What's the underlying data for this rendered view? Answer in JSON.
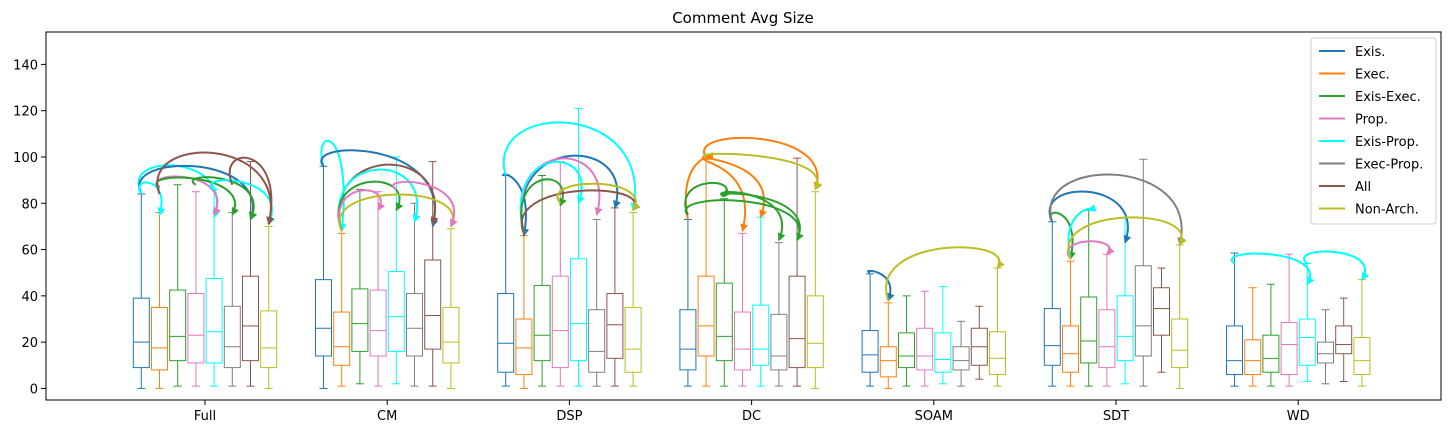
{
  "chart_data": {
    "type": "box",
    "title": "Comment Avg Size",
    "xlabel": "",
    "ylabel": "",
    "ylim": [
      -5,
      154
    ],
    "yticks": [
      0,
      20,
      40,
      60,
      80,
      100,
      120,
      140
    ],
    "legend_position": "top-right",
    "categories": [
      "Full",
      "CM",
      "DSP",
      "DC",
      "SOAM",
      "SDT",
      "WD"
    ],
    "series": [
      {
        "name": "Exis.",
        "color": "#1f77b4",
        "boxes": [
          {
            "min": 0,
            "q1": 9,
            "median": 20,
            "q3": 39,
            "max": 84
          },
          {
            "min": 0,
            "q1": 14,
            "median": 26,
            "q3": 47,
            "max": 96
          },
          {
            "min": 1,
            "q1": 7,
            "median": 19.5,
            "q3": 41,
            "max": 92
          },
          {
            "min": 1,
            "q1": 8,
            "median": 17,
            "q3": 34,
            "max": 73
          },
          {
            "min": 1,
            "q1": 7,
            "median": 14.5,
            "q3": 25,
            "max": 49.5
          },
          {
            "min": 1,
            "q1": 10,
            "median": 18.5,
            "q3": 34.5,
            "max": 72
          },
          {
            "min": 1,
            "q1": 6,
            "median": 12,
            "q3": 27,
            "max": 58.5
          }
        ]
      },
      {
        "name": "Exec.",
        "color": "#ff7f0e",
        "boxes": [
          {
            "min": 0,
            "q1": 8,
            "median": 17.5,
            "q3": 35,
            "max": 76
          },
          {
            "min": 1,
            "q1": 10,
            "median": 18,
            "q3": 33,
            "max": 67
          },
          {
            "min": 0,
            "q1": 6,
            "median": 17.5,
            "q3": 30,
            "max": 66
          },
          {
            "min": 1,
            "q1": 14,
            "median": 27,
            "q3": 48.5,
            "max": 99
          },
          {
            "min": 0,
            "q1": 5,
            "median": 12,
            "q3": 18,
            "max": 37
          },
          {
            "min": 1,
            "q1": 7,
            "median": 15,
            "q3": 27,
            "max": 55
          },
          {
            "min": 1,
            "q1": 6,
            "median": 12,
            "q3": 21,
            "max": 43.5
          }
        ]
      },
      {
        "name": "Exis-Exec.",
        "color": "#2ca02c",
        "boxes": [
          {
            "min": 1,
            "q1": 12,
            "median": 22.5,
            "q3": 42.5,
            "max": 88
          },
          {
            "min": 2,
            "q1": 16,
            "median": 28,
            "q3": 43,
            "max": 86
          },
          {
            "min": 1,
            "q1": 12,
            "median": 23,
            "q3": 44.5,
            "max": 92
          },
          {
            "min": 1,
            "q1": 12,
            "median": 22.5,
            "q3": 45.5,
            "max": 82
          },
          {
            "min": 1,
            "q1": 9,
            "median": 14,
            "q3": 24,
            "max": 40
          },
          {
            "min": 1,
            "q1": 11,
            "median": 20.5,
            "q3": 39.5,
            "max": 77
          },
          {
            "min": 1,
            "q1": 7,
            "median": 13,
            "q3": 23,
            "max": 45
          }
        ]
      },
      {
        "name": "Prop.",
        "color": "#e377c2",
        "boxes": [
          {
            "min": 1,
            "q1": 11,
            "median": 23,
            "q3": 41,
            "max": 85
          },
          {
            "min": 1,
            "q1": 14,
            "median": 25,
            "q3": 42.5,
            "max": 85
          },
          {
            "min": 1,
            "q1": 9,
            "median": 25,
            "q3": 48.5,
            "max": 98
          },
          {
            "min": 1,
            "q1": 8,
            "median": 17,
            "q3": 33,
            "max": 67
          },
          {
            "min": 1,
            "q1": 8,
            "median": 14,
            "q3": 26,
            "max": 42
          },
          {
            "min": 1,
            "q1": 9,
            "median": 18,
            "q3": 34,
            "max": 58
          },
          {
            "min": 1,
            "q1": 6,
            "median": 19,
            "q3": 28.5,
            "max": 58
          }
        ]
      },
      {
        "name": "Exis-Prop.",
        "color": "#00ffff",
        "boxes": [
          {
            "min": 1,
            "q1": 11,
            "median": 24.5,
            "q3": 47.5,
            "max": 86
          },
          {
            "min": 2,
            "q1": 16,
            "median": 31,
            "q3": 50.5,
            "max": 100
          },
          {
            "min": 1,
            "q1": 12,
            "median": 28,
            "q3": 56,
            "max": 121
          },
          {
            "min": 1,
            "q1": 10,
            "median": 17,
            "q3": 36,
            "max": 74
          },
          {
            "min": 2,
            "q1": 7,
            "median": 12.5,
            "q3": 24,
            "max": 44
          },
          {
            "min": 2,
            "q1": 12,
            "median": 22.5,
            "q3": 40,
            "max": 74
          },
          {
            "min": 3,
            "q1": 10,
            "median": 22,
            "q3": 30,
            "max": 54
          }
        ]
      },
      {
        "name": "Exec-Prop.",
        "color": "#7f7f7f",
        "boxes": [
          {
            "min": 1,
            "q1": 9,
            "median": 18,
            "q3": 35.5,
            "max": 76
          },
          {
            "min": 1,
            "q1": 14,
            "median": 26,
            "q3": 41,
            "max": 80
          },
          {
            "min": 1,
            "q1": 7,
            "median": 16,
            "q3": 34,
            "max": 73
          },
          {
            "min": 1,
            "q1": 8,
            "median": 14,
            "q3": 32,
            "max": 63
          },
          {
            "min": 1,
            "q1": 8,
            "median": 12,
            "q3": 18,
            "max": 29
          },
          {
            "min": 1,
            "q1": 14,
            "median": 27,
            "q3": 53,
            "max": 99
          },
          {
            "min": 2,
            "q1": 11,
            "median": 15,
            "q3": 20,
            "max": 34
          }
        ]
      },
      {
        "name": "All",
        "color": "#8c564b",
        "boxes": [
          {
            "min": 1,
            "q1": 12,
            "median": 27,
            "q3": 48.5,
            "max": 98
          },
          {
            "min": 1,
            "q1": 17,
            "median": 31.5,
            "q3": 55.5,
            "max": 98
          },
          {
            "min": 1,
            "q1": 13,
            "median": 27.5,
            "q3": 41,
            "max": 78
          },
          {
            "min": 1,
            "q1": 9,
            "median": 21.5,
            "q3": 48.5,
            "max": 99.5
          },
          {
            "min": 4,
            "q1": 10,
            "median": 18,
            "q3": 26,
            "max": 35.5
          },
          {
            "min": 7,
            "q1": 23,
            "median": 34.5,
            "q3": 43.5,
            "max": 52
          },
          {
            "min": 3,
            "q1": 15,
            "median": 19,
            "q3": 27,
            "max": 39
          }
        ]
      },
      {
        "name": "Non-Arch.",
        "color": "#bcbd22",
        "boxes": [
          {
            "min": 0,
            "q1": 9,
            "median": 17.5,
            "q3": 33.5,
            "max": 70
          },
          {
            "min": 0,
            "q1": 11,
            "median": 20,
            "q3": 35,
            "max": 69
          },
          {
            "min": 1,
            "q1": 7,
            "median": 17,
            "q3": 35,
            "max": 76
          },
          {
            "min": 0,
            "q1": 9,
            "median": 19.5,
            "q3": 40,
            "max": 85
          },
          {
            "min": 1,
            "q1": 6,
            "median": 13,
            "q3": 24.5,
            "max": 52
          },
          {
            "min": 0,
            "q1": 9,
            "median": 16.5,
            "q3": 30,
            "max": 62
          },
          {
            "min": 1,
            "q1": 6,
            "median": 12,
            "q3": 22,
            "max": 47
          }
        ]
      }
    ],
    "arrows": [
      {
        "group": 0,
        "from": 0,
        "to": 4,
        "color": "#00ffff",
        "peak": 100,
        "start_y": 85,
        "end_y": 74
      },
      {
        "group": 0,
        "from": 0,
        "to": 6,
        "color": "#1f77b4",
        "peak": 100,
        "start_y": 84,
        "end_y": 73
      },
      {
        "group": 0,
        "from": 0,
        "to": 1,
        "color": "#00ffff",
        "peak": 90,
        "start_y": 84,
        "end_y": 75
      },
      {
        "group": 0,
        "from": 1,
        "to": 4,
        "color": "#e377c2",
        "peak": 93,
        "start_y": 86,
        "end_y": 75
      },
      {
        "group": 0,
        "from": 1,
        "to": 5,
        "color": "#2ca02c",
        "peak": 92,
        "start_y": 87,
        "end_y": 75
      },
      {
        "group": 0,
        "from": 3,
        "to": 6,
        "color": "#2ca02c",
        "peak": 92,
        "start_y": 88,
        "end_y": 73
      },
      {
        "group": 0,
        "from": 4,
        "to": 7,
        "color": "#00ffff",
        "peak": 91,
        "start_y": 86,
        "end_y": 71
      },
      {
        "group": 0,
        "from": 5,
        "to": 7,
        "color": "#8c564b",
        "peak": 104,
        "start_y": 88,
        "end_y": 71
      },
      {
        "group": 0,
        "from": 1,
        "to": 7,
        "color": "#8c564b",
        "peak": 108,
        "start_y": 84,
        "end_y": 71
      },
      {
        "group": 1,
        "from": 0,
        "to": 1,
        "color": "#00ffff",
        "peak": 112,
        "start_y": 96,
        "end_y": 68
      },
      {
        "group": 1,
        "from": 0,
        "to": 6,
        "color": "#1f77b4",
        "peak": 106,
        "start_y": 96,
        "end_y": 70
      },
      {
        "group": 1,
        "from": 1,
        "to": 6,
        "color": "#8c564b",
        "peak": 104,
        "start_y": 68,
        "end_y": 71
      },
      {
        "group": 1,
        "from": 1,
        "to": 5,
        "color": "#00ffff",
        "peak": 101,
        "start_y": 68,
        "end_y": 72
      },
      {
        "group": 1,
        "from": 1,
        "to": 4,
        "color": "#2ca02c",
        "peak": 93,
        "start_y": 68,
        "end_y": 77
      },
      {
        "group": 1,
        "from": 1,
        "to": 3,
        "color": "#e377c2",
        "peak": 88,
        "start_y": 68,
        "end_y": 77
      },
      {
        "group": 1,
        "from": 1,
        "to": 7,
        "color": "#bcbd22",
        "peak": 87,
        "start_y": 68,
        "end_y": 70
      },
      {
        "group": 1,
        "from": 4,
        "to": 7,
        "color": "#e377c2",
        "peak": 90,
        "start_y": 86,
        "end_y": 70
      },
      {
        "group": 2,
        "from": 0,
        "to": 1,
        "color": "#1f77b4",
        "peak": 92,
        "start_y": 92,
        "end_y": 66
      },
      {
        "group": 2,
        "from": 0,
        "to": 7,
        "color": "#00ffff",
        "peak": 123,
        "start_y": 92,
        "end_y": 77
      },
      {
        "group": 2,
        "from": 1,
        "to": 6,
        "color": "#1f77b4",
        "peak": 108,
        "start_y": 67,
        "end_y": 78
      },
      {
        "group": 2,
        "from": 1,
        "to": 5,
        "color": "#e377c2",
        "peak": 107,
        "start_y": 67,
        "end_y": 75
      },
      {
        "group": 2,
        "from": 1,
        "to": 4,
        "color": "#00ffff",
        "peak": 104,
        "start_y": 67,
        "end_y": 80
      },
      {
        "group": 2,
        "from": 1,
        "to": 3,
        "color": "#2ca02c",
        "peak": 94,
        "start_y": 67,
        "end_y": 79
      },
      {
        "group": 2,
        "from": 1,
        "to": 7,
        "color": "#8c564b",
        "peak": 88,
        "start_y": 67,
        "end_y": 77
      },
      {
        "group": 2,
        "from": 3,
        "to": 7,
        "color": "#bcbd22",
        "peak": 90,
        "start_y": 80,
        "end_y": 77
      },
      {
        "group": 3,
        "from": 0,
        "to": 1,
        "color": "#ff7f0e",
        "peak": 99,
        "start_y": 73,
        "end_y": 100
      },
      {
        "group": 3,
        "from": 1,
        "to": 4,
        "color": "#ff7f0e",
        "peak": 98,
        "start_y": 100,
        "end_y": 74
      },
      {
        "group": 3,
        "from": 1,
        "to": 7,
        "color": "#ff7f0e",
        "peak": 111,
        "start_y": 100,
        "end_y": 86
      },
      {
        "group": 3,
        "from": 1,
        "to": 3,
        "color": "#ff7f0e",
        "peak": 96,
        "start_y": 100,
        "end_y": 68
      },
      {
        "group": 3,
        "from": 0,
        "to": 2,
        "color": "#2ca02c",
        "peak": 90,
        "start_y": 75,
        "end_y": 83
      },
      {
        "group": 3,
        "from": 2,
        "to": 5,
        "color": "#2ca02c",
        "peak": 85,
        "start_y": 83,
        "end_y": 64
      },
      {
        "group": 3,
        "from": 2,
        "to": 6,
        "color": "#2ca02c",
        "peak": 84,
        "start_y": 83,
        "end_y": 64
      },
      {
        "group": 3,
        "from": 1,
        "to": 7,
        "color": "#bcbd22",
        "peak": 101,
        "start_y": 100,
        "end_y": 86
      },
      {
        "group": 3,
        "from": 0,
        "to": 6,
        "color": "#2ca02c",
        "peak": 83,
        "start_y": 75,
        "end_y": 64
      },
      {
        "group": 4,
        "from": 0,
        "to": 1,
        "color": "#1f77b4",
        "peak": 50,
        "start_y": 50,
        "end_y": 38
      },
      {
        "group": 4,
        "from": 1,
        "to": 7,
        "color": "#bcbd22",
        "peak": 64,
        "start_y": 38,
        "end_y": 52
      },
      {
        "group": 5,
        "from": 0,
        "to": 1,
        "color": "#2ca02c",
        "peak": 77,
        "start_y": 72,
        "end_y": 56
      },
      {
        "group": 5,
        "from": 1,
        "to": 2,
        "color": "#00ffff",
        "peak": 77,
        "start_y": 56,
        "end_y": 77
      },
      {
        "group": 5,
        "from": 1,
        "to": 3,
        "color": "#e377c2",
        "peak": 64,
        "start_y": 56,
        "end_y": 58
      },
      {
        "group": 5,
        "from": 0,
        "to": 4,
        "color": "#1f77b4",
        "peak": 89,
        "start_y": 72,
        "end_y": 63
      },
      {
        "group": 5,
        "from": 0,
        "to": 7,
        "color": "#7f7f7f",
        "peak": 99,
        "start_y": 72,
        "end_y": 62
      },
      {
        "group": 5,
        "from": 1,
        "to": 7,
        "color": "#bcbd22",
        "peak": 77,
        "start_y": 56,
        "end_y": 62
      },
      {
        "group": 6,
        "from": 0,
        "to": 4,
        "color": "#00ffff",
        "peak": 59,
        "start_y": 54,
        "end_y": 45
      },
      {
        "group": 6,
        "from": 4,
        "to": 7,
        "color": "#00ffff",
        "peak": 60,
        "start_y": 54,
        "end_y": 47
      }
    ]
  }
}
